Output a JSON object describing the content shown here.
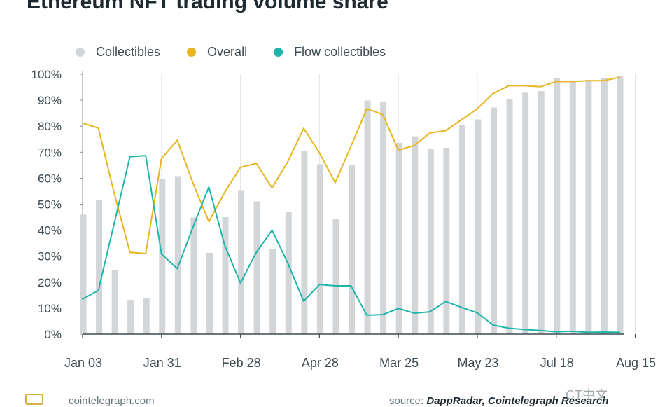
{
  "title": "Ethereum NFT trading volume share",
  "legend": [
    {
      "label": "Collectibles",
      "color": "#d3d6d8"
    },
    {
      "label": "Overall",
      "color": "#e8b522"
    },
    {
      "label": "Flow collectibles",
      "color": "#1fb5aa"
    }
  ],
  "footer": {
    "site": "cointelegraph.com",
    "source_prefix": "source:",
    "source_name": "DappRadar, Cointelegraph Research",
    "watermark": "CT中文"
  },
  "chart_data": {
    "type": "bar",
    "title": "Ethereum NFT trading volume share",
    "xlabel": "",
    "ylabel": "",
    "ylim": [
      0,
      100
    ],
    "yticks": [
      0,
      10,
      20,
      30,
      40,
      50,
      60,
      70,
      80,
      90,
      100
    ],
    "ytick_labels": [
      "0%",
      "10%",
      "20%",
      "30%",
      "40%",
      "50%",
      "60%",
      "70%",
      "80%",
      "90%",
      "100%"
    ],
    "xtick_labels": [
      {
        "label": "Jan 03",
        "index": 0
      },
      {
        "label": "Jan 31",
        "index": 5
      },
      {
        "label": "Feb 28",
        "index": 10
      },
      {
        "label": "Apr 28",
        "index": 15
      },
      {
        "label": "Mar 25",
        "index": 20
      },
      {
        "label": "May 23",
        "index": 25
      },
      {
        "label": "Jul 18",
        "index": 30
      },
      {
        "label": "Aug 15",
        "index": 35
      }
    ],
    "series": [
      {
        "name": "Collectibles",
        "kind": "bar",
        "color": "#d3d6d8",
        "values": [
          46,
          51.7,
          24.6,
          13.2,
          13.8,
          59.8,
          60.8,
          44.9,
          31.3,
          45,
          55.4,
          51.1,
          32.9,
          46.9,
          70.4,
          65.4,
          44.3,
          65.2,
          89.9,
          89.5,
          73.6,
          76.1,
          71.3,
          71.7,
          80.6,
          82.6,
          87.2,
          90.3,
          92.9,
          93.5,
          98.6,
          97.5,
          97.8,
          98.6,
          99.4
        ]
      },
      {
        "name": "Overall",
        "kind": "line",
        "color": "#e8b522",
        "values": [
          81.2,
          79.3,
          54.3,
          31.5,
          31,
          67.6,
          74.6,
          58,
          43.3,
          54.6,
          64.2,
          65.7,
          56.3,
          66.4,
          79.2,
          69.8,
          58.3,
          72.3,
          86.7,
          84.6,
          70.8,
          72.6,
          77.4,
          78.3,
          82.5,
          86.7,
          92.6,
          95.6,
          95.6,
          95.2,
          97.2,
          97.2,
          97.5,
          97.5,
          98.8
        ]
      },
      {
        "name": "Flow collectibles",
        "kind": "line",
        "color": "#1fb5aa",
        "values": [
          13.5,
          16.8,
          42.5,
          68.3,
          68.7,
          30.8,
          25.2,
          41.3,
          56.6,
          34.2,
          19.7,
          31.4,
          40,
          27.3,
          12.7,
          19.1,
          18.6,
          18.6,
          7.3,
          7.5,
          9.9,
          8.1,
          8.6,
          12.6,
          10.3,
          8.2,
          3.5,
          2.3,
          1.8,
          1.4,
          0.9,
          1.1,
          0.7,
          0.8,
          0.7
        ]
      }
    ],
    "grid": {
      "x": true,
      "y": false
    },
    "legend_position": "top-left"
  }
}
